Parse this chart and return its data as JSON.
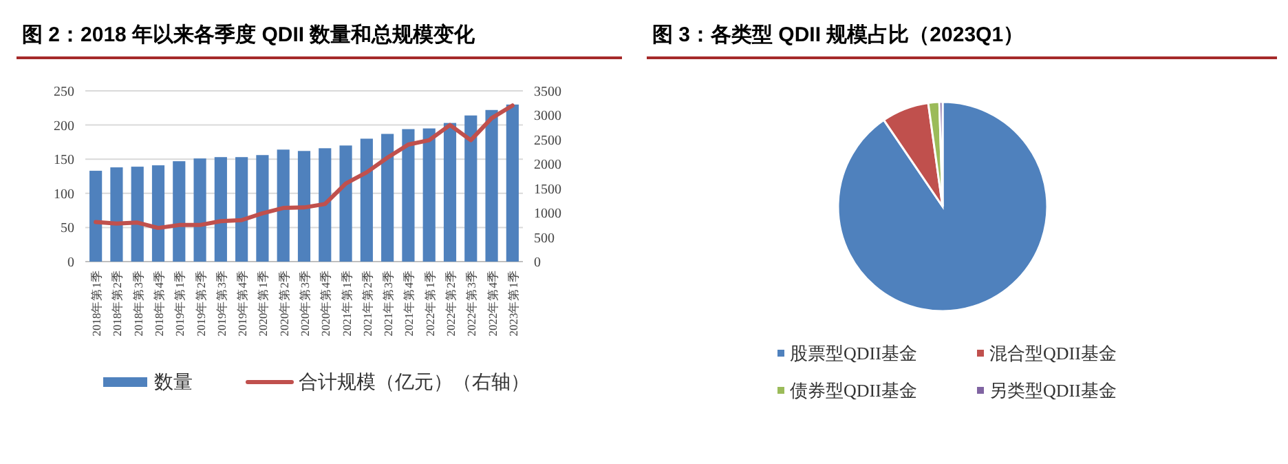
{
  "chart_data": [
    {
      "type": "bar",
      "title": "图 2：2018 年以来各季度 QDII 数量和总规模变化",
      "categories": [
        "2018年第1季",
        "2018年第2季",
        "2018年第3季",
        "2018年第4季",
        "2019年第1季",
        "2019年第2季",
        "2019年第3季",
        "2019年第4季",
        "2020年第1季",
        "2020年第2季",
        "2020年第3季",
        "2020年第4季",
        "2021年第1季",
        "2021年第2季",
        "2021年第3季",
        "2021年第4季",
        "2022年第1季",
        "2022年第2季",
        "2022年第3季",
        "2022年第4季",
        "2023年第1季"
      ],
      "series": [
        {
          "name": "数量",
          "type": "bar",
          "color": "#4f81bd",
          "values": [
            133,
            138,
            139,
            141,
            147,
            151,
            153,
            153,
            156,
            164,
            162,
            166,
            170,
            180,
            187,
            194,
            195,
            203,
            214,
            222,
            230
          ]
        },
        {
          "name": "合计规模（亿元）（右轴）",
          "type": "line",
          "axis": "y2",
          "color": "#c0504d",
          "values": [
            810,
            780,
            800,
            690,
            750,
            750,
            830,
            850,
            990,
            1100,
            1110,
            1180,
            1600,
            1830,
            2130,
            2400,
            2490,
            2800,
            2490,
            2940,
            3200
          ]
        }
      ],
      "ylim": [
        0,
        250
      ],
      "yticks": [
        0,
        50,
        100,
        150,
        200,
        250
      ],
      "y2lim": [
        0,
        3500
      ],
      "y2ticks": [
        0,
        500,
        1000,
        1500,
        2000,
        2500,
        3000,
        3500
      ],
      "grid": "y",
      "legend": "bottom"
    },
    {
      "type": "pie",
      "title": "图 3：各类型 QDII 规模占比（2023Q1）",
      "categories": [
        "股票型QDII基金",
        "混合型QDII基金",
        "债券型QDII基金",
        "另类型QDII基金"
      ],
      "values": [
        90.5,
        7.3,
        1.7,
        0.5
      ],
      "colors": [
        "#4f81bd",
        "#c0504d",
        "#9bbb59",
        "#8064a2"
      ],
      "legend": "bottom"
    }
  ]
}
